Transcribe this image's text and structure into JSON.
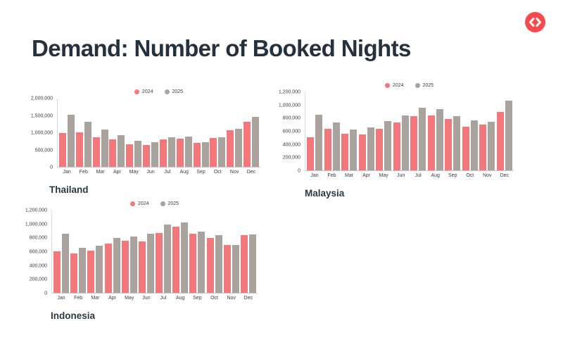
{
  "page": {
    "title": "Demand: Number of Booked Nights",
    "background": "#ffffff",
    "heading_color": "#25313c",
    "logo_color": "#f74a4c",
    "logo_icon": "code-brackets-icon"
  },
  "chart_data": [
    {
      "type": "bar",
      "title": "Thailand",
      "categories": [
        "Jan",
        "Feb",
        "Mar",
        "Apr",
        "May",
        "Jun",
        "Jul",
        "Aug",
        "Sep",
        "Oct",
        "Nov",
        "Dec"
      ],
      "series": [
        {
          "name": "2024",
          "color": "#f4777c",
          "values": [
            980000,
            1000000,
            850000,
            790000,
            650000,
            630000,
            800000,
            810000,
            700000,
            830000,
            1070000,
            1300000
          ]
        },
        {
          "name": "2025",
          "color": "#a9a29d",
          "values": [
            1510000,
            1310000,
            1080000,
            920000,
            750000,
            710000,
            860000,
            870000,
            720000,
            860000,
            1110000,
            1450000
          ]
        }
      ],
      "ylim": [
        0,
        2000000
      ],
      "ytick_interval": 500000,
      "ytick_labels": [
        "0",
        "500,000",
        "1,000,000",
        "1,500,000",
        "2,000,000"
      ],
      "legend_position": "top",
      "grid": false,
      "xlabel": "",
      "ylabel": ""
    },
    {
      "type": "bar",
      "title": "Malaysia",
      "categories": [
        "Jan",
        "Feb",
        "Mar",
        "Apr",
        "May",
        "Jun",
        "Jul",
        "Aug",
        "Sep",
        "Oct",
        "Nov",
        "Dec"
      ],
      "series": [
        {
          "name": "2024",
          "color": "#f4777c",
          "values": [
            500000,
            630000,
            560000,
            550000,
            635000,
            725000,
            825000,
            840000,
            780000,
            660000,
            700000,
            890000
          ]
        },
        {
          "name": "2025",
          "color": "#a9a29d",
          "values": [
            845000,
            730000,
            625000,
            650000,
            750000,
            840000,
            950000,
            930000,
            830000,
            760000,
            740000,
            1060000
          ]
        }
      ],
      "ylim": [
        0,
        1200000
      ],
      "ytick_interval": 200000,
      "ytick_labels": [
        "0",
        "200,000",
        "400,000",
        "600,000",
        "800,000",
        "1,000,000",
        "1,200,000"
      ],
      "legend_position": "top",
      "grid": false,
      "xlabel": "",
      "ylabel": ""
    },
    {
      "type": "bar",
      "title": "Indonesia",
      "categories": [
        "Jan",
        "Feb",
        "Mar",
        "Apr",
        "May",
        "Jun",
        "Jul",
        "Aug",
        "Sep",
        "Oct",
        "Nov",
        "Dec"
      ],
      "series": [
        {
          "name": "2024",
          "color": "#f4777c",
          "values": [
            595000,
            570000,
            610000,
            710000,
            750000,
            740000,
            860000,
            955000,
            850000,
            795000,
            690000,
            830000
          ]
        },
        {
          "name": "2025",
          "color": "#a9a29d",
          "values": [
            850000,
            655000,
            680000,
            790000,
            815000,
            850000,
            985000,
            1020000,
            880000,
            830000,
            690000,
            840000
          ]
        }
      ],
      "ylim": [
        0,
        1200000
      ],
      "ytick_interval": 200000,
      "ytick_labels": [
        "0",
        "200,000",
        "400,000",
        "600,000",
        "800,000",
        "1,000,000",
        "1,200,000"
      ],
      "legend_position": "top",
      "grid": false,
      "xlabel": "",
      "ylabel": ""
    }
  ]
}
